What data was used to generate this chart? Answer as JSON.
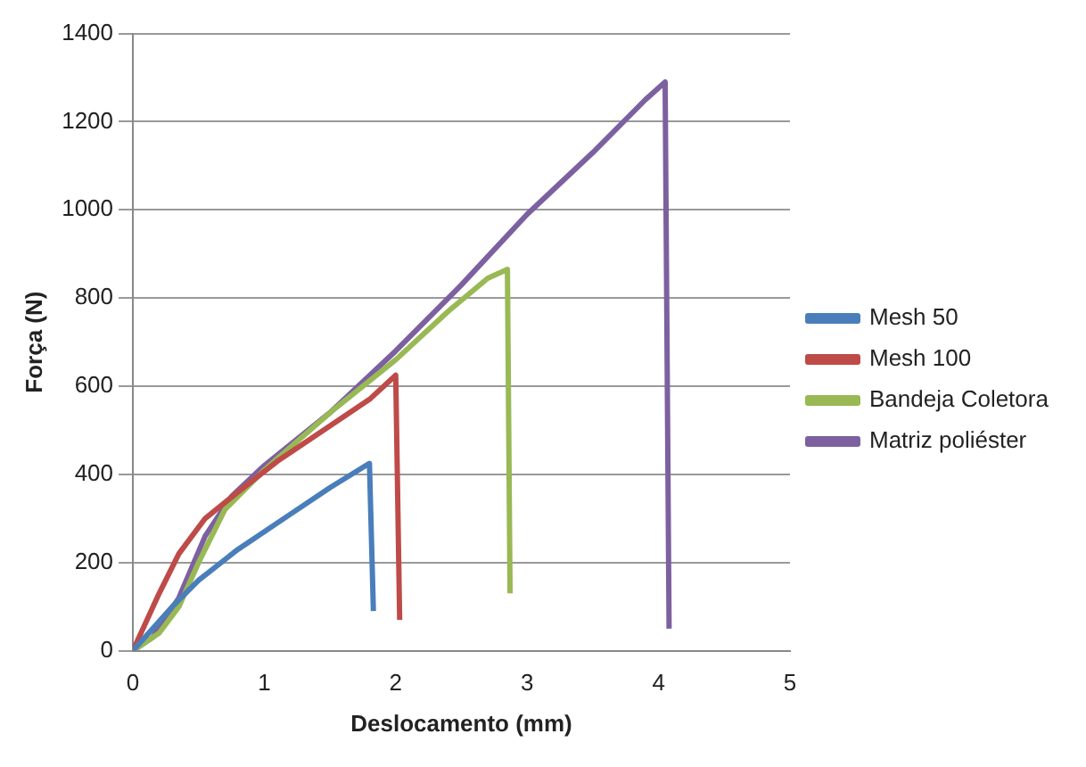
{
  "chart_data": {
    "type": "line",
    "xlabel": "Deslocamento (mm)",
    "ylabel": "Força (N)",
    "xlim": [
      0,
      5
    ],
    "xticks": [
      0,
      1,
      2,
      3,
      4,
      5
    ],
    "ylim": [
      0,
      1400
    ],
    "yticks": [
      0,
      200,
      400,
      600,
      800,
      1000,
      1200,
      1400
    ],
    "grid": "y",
    "legend": "right",
    "marker": "none",
    "line_style": "solid",
    "series": [
      {
        "name": "Mesh 50",
        "color": "#4a7ebb",
        "x": [
          0,
          0.3,
          0.5,
          0.8,
          1.2,
          1.5,
          1.8,
          1.83
        ],
        "values": [
          0,
          100,
          160,
          230,
          310,
          370,
          425,
          90
        ]
      },
      {
        "name": "Mesh 100",
        "color": "#be4b48",
        "x": [
          0,
          0.2,
          0.35,
          0.55,
          0.8,
          1.1,
          1.5,
          1.8,
          2.0,
          2.03
        ],
        "values": [
          0,
          130,
          220,
          300,
          360,
          430,
          510,
          570,
          625,
          70
        ]
      },
      {
        "name": "Bandeja Coletora",
        "color": "#98b954",
        "x": [
          0,
          0.2,
          0.35,
          0.5,
          0.7,
          1.0,
          1.5,
          2.0,
          2.4,
          2.7,
          2.85,
          2.87
        ],
        "values": [
          0,
          40,
          100,
          200,
          320,
          410,
          540,
          660,
          770,
          845,
          865,
          130
        ]
      },
      {
        "name": "Matriz poliéster",
        "color": "#7d60a0",
        "x": [
          0,
          0.15,
          0.35,
          0.55,
          0.75,
          1.0,
          1.5,
          2.0,
          2.5,
          3.0,
          3.5,
          3.9,
          4.05,
          4.08
        ],
        "values": [
          0,
          30,
          120,
          260,
          350,
          420,
          540,
          680,
          830,
          990,
          1130,
          1250,
          1290,
          50
        ]
      }
    ]
  }
}
